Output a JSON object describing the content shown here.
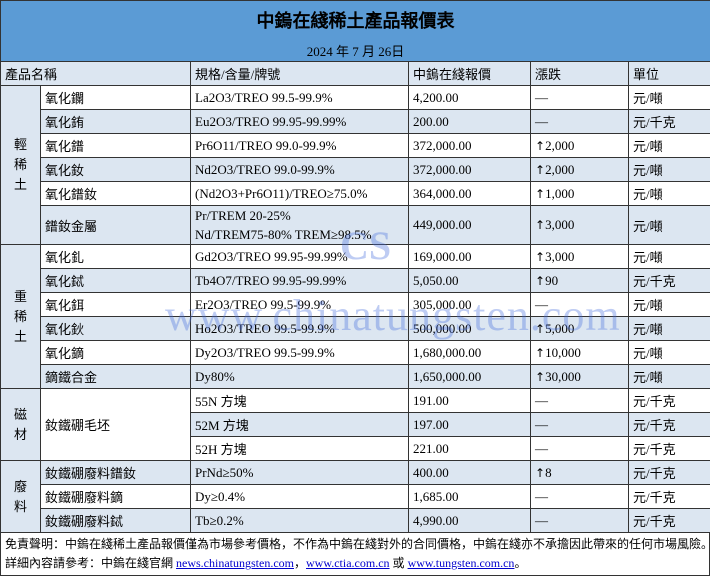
{
  "title": "中鎢在綫稀土產品報價表",
  "date": "2024 年 7 月 26日",
  "headers": [
    "產品名稱",
    "規格/含量/牌號",
    "中鎢在綫報價",
    "漲跌",
    "單位"
  ],
  "groups": [
    {
      "label": "輕稀土",
      "rows": [
        {
          "name": "氧化鑭",
          "spec": "La2O3/TREO 99.5-99.9%",
          "price": "4,200.00",
          "change": "—",
          "unit": "元/噸"
        },
        {
          "name": "氧化銪",
          "spec": "Eu2O3/TREO 99.95-99.99%",
          "price": "200.00",
          "change": "—",
          "unit": "元/千克"
        },
        {
          "name": "氧化鐠",
          "spec": "Pr6O11/TREO 99.0-99.9%",
          "price": "372,000.00",
          "change": "2,000",
          "unit": "元/噸"
        },
        {
          "name": "氧化釹",
          "spec": "Nd2O3/TREO 99.0-99.9%",
          "price": "372,000.00",
          "change": "2,000",
          "unit": "元/噸"
        },
        {
          "name": "氧化鐠釹",
          "spec": "(Nd2O3+Pr6O11)/TREO≥75.0%",
          "price": "364,000.00",
          "change": "1,000",
          "unit": "元/噸"
        },
        {
          "name": "鐠釹金屬",
          "spec": "Pr/TREM 20-25%",
          "spec2": "Nd/TREM75-80% TREM≥98.5%",
          "price": "449,000.00",
          "change": "3,000",
          "unit": "元/噸"
        }
      ]
    },
    {
      "label": "重稀土",
      "rows": [
        {
          "name": "氧化釓",
          "spec": "Gd2O3/TREO 99.95-99.99%",
          "price": "169,000.00",
          "change": "3,000",
          "unit": "元/噸"
        },
        {
          "name": "氧化鋱",
          "spec": "Tb4O7/TREO 99.95-99.99%",
          "price": "5,050.00",
          "change": "90",
          "unit": "元/千克"
        },
        {
          "name": "氧化鉺",
          "spec": "Er2O3/TREO 99.5-99.9%",
          "price": "305,000.00",
          "change": "—",
          "unit": "元/噸"
        },
        {
          "name": "氧化鈥",
          "spec": "Ho2O3/TREO 99.5-99.9%",
          "price": "500,000.00",
          "change": "5,000",
          "unit": "元/噸"
        },
        {
          "name": "氧化鏑",
          "spec": "Dy2O3/TREO 99.5-99.9%",
          "price": "1,680,000.00",
          "change": "10,000",
          "unit": "元/噸"
        },
        {
          "name": "鏑鐵合金",
          "spec": "Dy80%",
          "price": "1,650,000.00",
          "change": "30,000",
          "unit": "元/噸"
        }
      ]
    },
    {
      "label": "磁材",
      "name": "釹鐵硼毛坯",
      "rows": [
        {
          "spec": "55N 方塊",
          "price": "191.00",
          "change": "—",
          "unit": "元/千克"
        },
        {
          "spec": "52M 方塊",
          "price": "197.00",
          "change": "—",
          "unit": "元/千克"
        },
        {
          "spec": "52H 方塊",
          "price": "221.00",
          "change": "—",
          "unit": "元/千克"
        }
      ]
    },
    {
      "label": "廢料",
      "rows": [
        {
          "name": "釹鐵硼廢料鐠釹",
          "spec": "PrNd≥50%",
          "price": "400.00",
          "change": "8",
          "unit": "元/千克"
        },
        {
          "name": "釹鐵硼廢料鏑",
          "spec": "Dy≥0.4%",
          "price": "1,685.00",
          "change": "—",
          "unit": "元/千克"
        },
        {
          "name": "釹鐵硼廢料鋱",
          "spec": "Tb≥0.2%",
          "price": "4,990.00",
          "change": "—",
          "unit": "元/千克"
        }
      ]
    }
  ],
  "footer": {
    "disclaimer": "免責聲明：中鎢在綫稀土產品報價僅為市場參考價格，不作為中鎢在綫對外的合同價格，中鎢在綫亦不承擔因此帶來的任何市場風險。",
    "ref_prefix": "詳細內容請參考：中鎢在綫官網 ",
    "link1": "news.chinatungsten.com",
    "sep1": "，",
    "link2": "www.ctia.com.cn",
    "sep2": " 或 ",
    "link3": "www.tungsten.com.cn",
    "end": "。"
  },
  "watermark": "www.chinatungsten.com",
  "logo": "CTOMS"
}
